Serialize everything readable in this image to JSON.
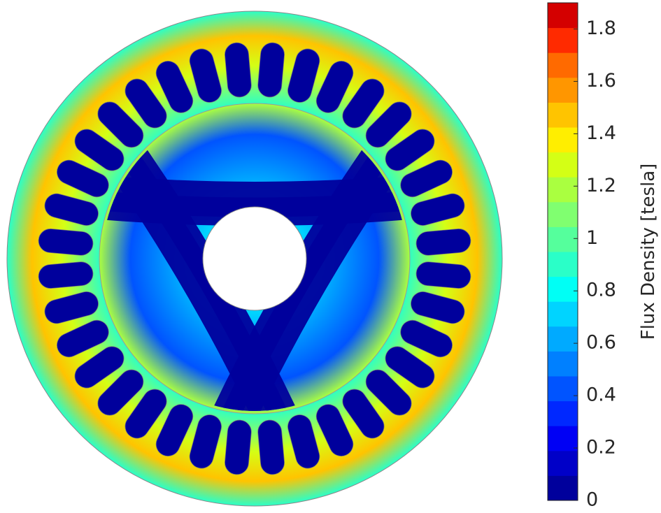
{
  "chart_data": {
    "type": "colormap",
    "colorbar_label": "Flux Density [tesla]",
    "clim": [
      0,
      1.9
    ],
    "cticks": [
      0,
      0.2,
      0.4,
      0.6,
      0.8,
      1,
      1.2,
      1.4,
      1.6,
      1.8
    ],
    "colors": [
      "#00009c",
      "#0000c8",
      "#0000f5",
      "#0028ff",
      "#0054ff",
      "#0080ff",
      "#00aaff",
      "#00d4ff",
      "#00fff5",
      "#2affc8",
      "#55ff9c",
      "#80ff70",
      "#aaff40",
      "#d4ff15",
      "#ffee00",
      "#ffc400",
      "#ff9600",
      "#ff6a00",
      "#ff2a00",
      "#d40000"
    ]
  }
}
